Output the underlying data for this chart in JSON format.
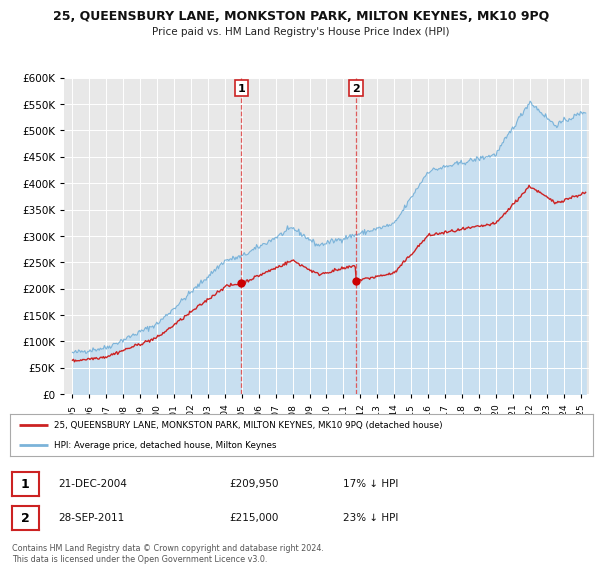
{
  "title": "25, QUEENSBURY LANE, MONKSTON PARK, MILTON KEYNES, MK10 9PQ",
  "subtitle": "Price paid vs. HM Land Registry's House Price Index (HPI)",
  "hpi_color": "#7bb3d9",
  "hpi_fill_color": "#c8dff0",
  "price_color": "#cc2222",
  "marker_color": "#cc0000",
  "background_color": "#ffffff",
  "plot_bg_color": "#e8e8e8",
  "grid_color": "#ffffff",
  "ylim": [
    0,
    600000
  ],
  "yticks": [
    0,
    50000,
    100000,
    150000,
    200000,
    250000,
    300000,
    350000,
    400000,
    450000,
    500000,
    550000,
    600000
  ],
  "xlim_start": 1994.5,
  "xlim_end": 2025.5,
  "sale1_x": 2004.97,
  "sale1_y": 209950,
  "sale1_label": "1",
  "sale2_x": 2011.74,
  "sale2_y": 215000,
  "sale2_label": "2",
  "legend_line1": "25, QUEENSBURY LANE, MONKSTON PARK, MILTON KEYNES, MK10 9PQ (detached house)",
  "legend_line2": "HPI: Average price, detached house, Milton Keynes",
  "table_row1_num": "1",
  "table_row1_date": "21-DEC-2004",
  "table_row1_price": "£209,950",
  "table_row1_hpi": "17% ↓ HPI",
  "table_row2_num": "2",
  "table_row2_date": "28-SEP-2011",
  "table_row2_price": "£215,000",
  "table_row2_hpi": "23% ↓ HPI",
  "footer": "Contains HM Land Registry data © Crown copyright and database right 2024.\nThis data is licensed under the Open Government Licence v3.0."
}
